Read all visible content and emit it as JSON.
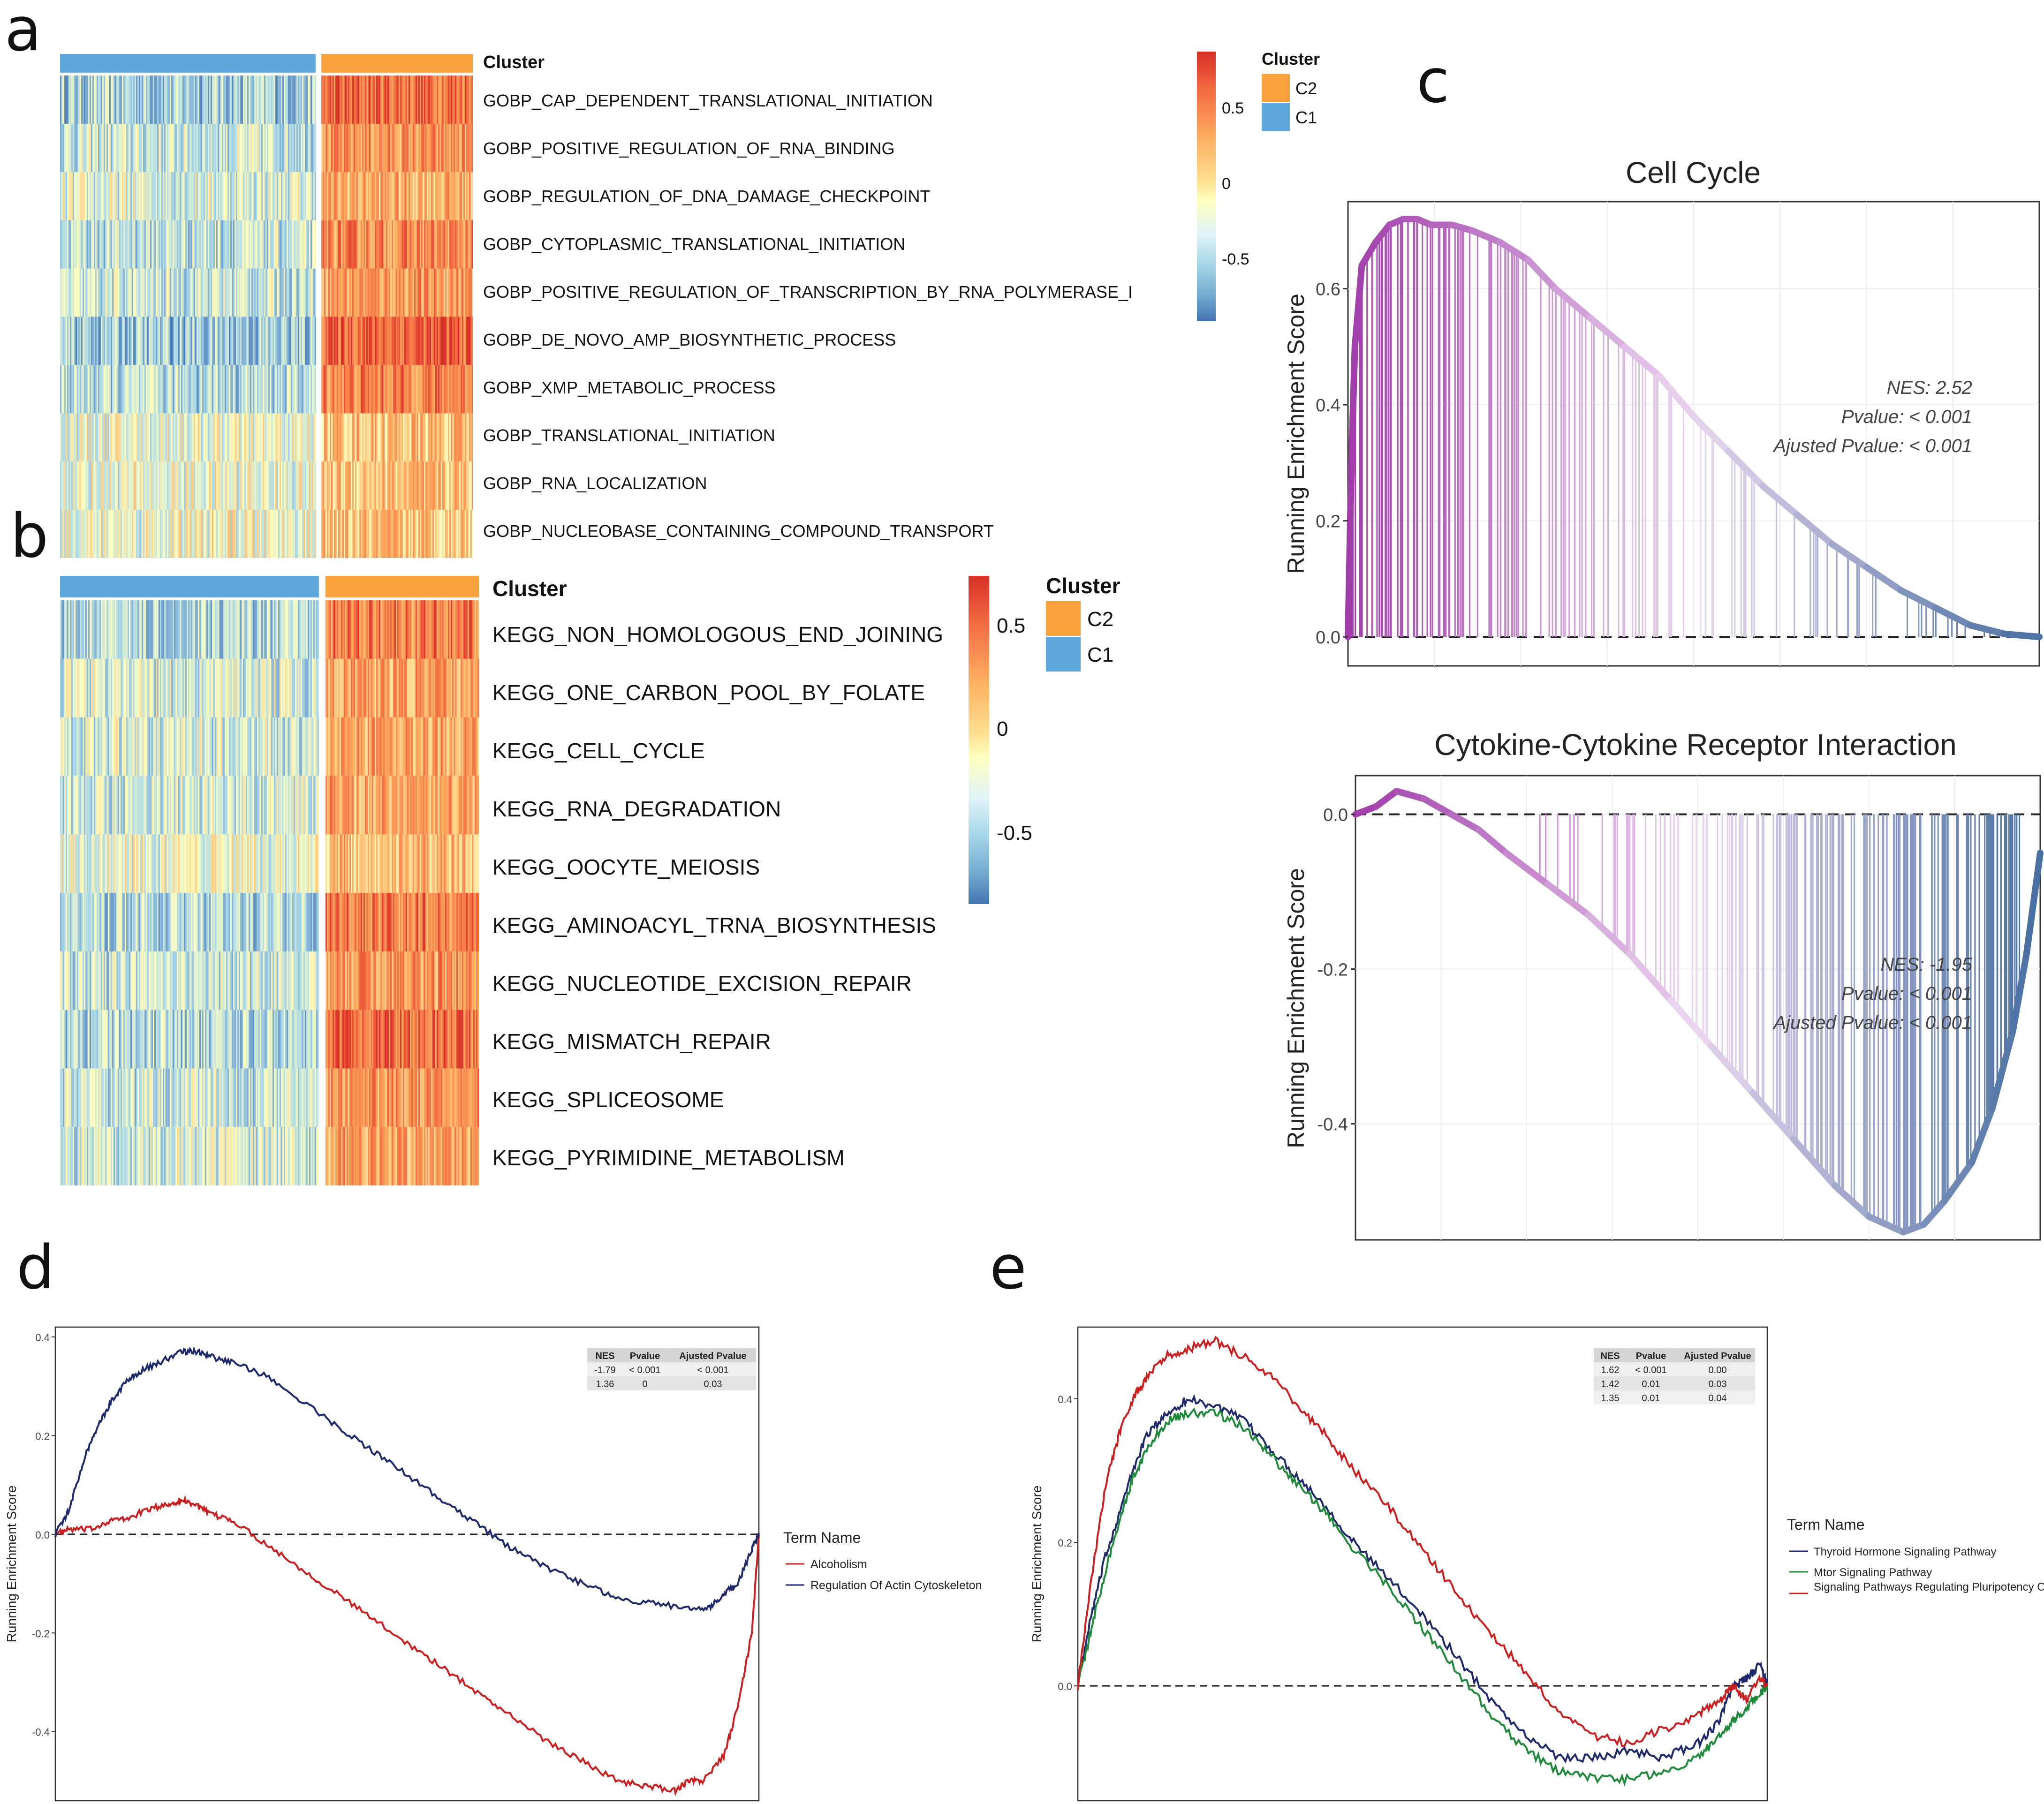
{
  "panels": {
    "a": "a",
    "b": "b",
    "c": "c",
    "d": "d",
    "e": "e"
  },
  "heatmap_a": {
    "cluster_header": "Cluster",
    "rows": [
      "GOBP_CAP_DEPENDENT_TRANSLATIONAL_INITIATION",
      "GOBP_POSITIVE_REGULATION_OF_RNA_BINDING",
      "GOBP_REGULATION_OF_DNA_DAMAGE_CHECKPOINT",
      "GOBP_CYTOPLASMIC_TRANSLATIONAL_INITIATION",
      "GOBP_POSITIVE_REGULATION_OF_TRANSCRIPTION_BY_RNA_POLYMERASE_I",
      "GOBP_DE_NOVO_AMP_BIOSYNTHETIC_PROCESS",
      "GOBP_XMP_METABOLIC_PROCESS",
      "GOBP_TRANSLATIONAL_INITIATION",
      "GOBP_RNA_LOCALIZATION",
      "GOBP_NUCLEOBASE_CONTAINING_COMPOUND_TRANSPORT"
    ],
    "row_intensity": [
      0.55,
      0.35,
      0.25,
      0.4,
      0.35,
      0.6,
      0.45,
      0.15,
      0.15,
      0.12
    ],
    "scale_ticks": [
      "0.5",
      "0",
      "-0.5"
    ],
    "legend_title": "Cluster",
    "legend": [
      {
        "label": "C2",
        "color": "#f8a13d"
      },
      {
        "label": "C1",
        "color": "#5fa8dd"
      }
    ]
  },
  "heatmap_b": {
    "cluster_header": "Cluster",
    "rows": [
      "KEGG_NON_HOMOLOGOUS_END_JOINING",
      "KEGG_ONE_CARBON_POOL_BY_FOLATE",
      "KEGG_CELL_CYCLE",
      "KEGG_RNA_DEGRADATION",
      "KEGG_OOCYTE_MEIOSIS",
      "KEGG_AMINOACYL_TRNA_BIOSYNTHESIS",
      "KEGG_NUCLEOTIDE_EXCISION_REPAIR",
      "KEGG_MISMATCH_REPAIR",
      "KEGG_SPLICEOSOME",
      "KEGG_PYRIMIDINE_METABOLISM"
    ],
    "row_intensity": [
      0.45,
      0.3,
      0.3,
      0.3,
      0.2,
      0.45,
      0.35,
      0.5,
      0.35,
      0.3
    ],
    "scale_ticks": [
      "0.5",
      "0",
      "-0.5"
    ],
    "legend_title": "Cluster",
    "legend": [
      {
        "label": "C2",
        "color": "#f8a13d"
      },
      {
        "label": "C1",
        "color": "#5fa8dd"
      }
    ]
  },
  "chart_data": [
    {
      "type": "line",
      "title": "Cell Cycle",
      "ylabel": "Running Enrichment Score",
      "ylim": [
        -0.05,
        0.75
      ],
      "yticks": [
        "0.0",
        "0.2",
        "0.4",
        "0.6"
      ],
      "nes_text": "NES: 2.52",
      "pvalue_text": "Pvalue: < 0.001",
      "adj_pvalue_text": "Ajusted Pvalue: < 0.001",
      "x": [
        0,
        0.005,
        0.01,
        0.02,
        0.04,
        0.06,
        0.08,
        0.1,
        0.12,
        0.15,
        0.18,
        0.22,
        0.26,
        0.3,
        0.35,
        0.4,
        0.45,
        0.5,
        0.55,
        0.6,
        0.65,
        0.7,
        0.75,
        0.8,
        0.85,
        0.9,
        0.95,
        1.0
      ],
      "values": [
        0.0,
        0.3,
        0.5,
        0.64,
        0.68,
        0.71,
        0.72,
        0.72,
        0.71,
        0.71,
        0.7,
        0.68,
        0.65,
        0.6,
        0.55,
        0.5,
        0.45,
        0.38,
        0.32,
        0.26,
        0.21,
        0.16,
        0.12,
        0.08,
        0.05,
        0.02,
        0.005,
        0.0
      ]
    },
    {
      "type": "line",
      "title": "Cytokine-Cytokine Receptor Interaction",
      "ylabel": "Running Enrichment Score",
      "ylim": [
        -0.55,
        0.05
      ],
      "yticks": [
        "0.0",
        "-0.2",
        "-0.4"
      ],
      "nes_text": "NES: -1.95",
      "pvalue_text": "Pvalue: < 0.001",
      "adj_pvalue_text": "Ajusted Pvalue: < 0.001",
      "x": [
        0,
        0.03,
        0.06,
        0.1,
        0.14,
        0.18,
        0.22,
        0.28,
        0.34,
        0.4,
        0.46,
        0.52,
        0.58,
        0.64,
        0.7,
        0.75,
        0.8,
        0.83,
        0.86,
        0.9,
        0.93,
        0.96,
        0.98,
        1.0
      ],
      "values": [
        0.0,
        0.01,
        0.03,
        0.02,
        0.0,
        -0.02,
        -0.05,
        -0.09,
        -0.13,
        -0.18,
        -0.24,
        -0.3,
        -0.36,
        -0.42,
        -0.48,
        -0.52,
        -0.54,
        -0.53,
        -0.5,
        -0.45,
        -0.38,
        -0.28,
        -0.18,
        -0.05
      ]
    },
    {
      "type": "line",
      "ylabel": "Running Enrichment Score",
      "ylim": [
        -0.54,
        0.42
      ],
      "yticks": [
        "0.4",
        "0.2",
        "0.0",
        "-0.2",
        "-0.4"
      ],
      "legend_title": "Term Name",
      "table_header": [
        "NES",
        "Pvalue",
        "Ajusted Pvalue"
      ],
      "table_rows": [
        [
          "-1.79",
          "< 0.001",
          "< 0.001"
        ],
        [
          "1.36",
          "0",
          "0.03"
        ]
      ],
      "series": [
        {
          "name": "Alcoholism",
          "color": "#cc2020",
          "x": [
            0,
            0.02,
            0.05,
            0.08,
            0.1,
            0.13,
            0.16,
            0.18,
            0.2,
            0.22,
            0.25,
            0.3,
            0.35,
            0.4,
            0.45,
            0.5,
            0.55,
            0.6,
            0.65,
            0.7,
            0.75,
            0.8,
            0.84,
            0.88,
            0.9,
            0.92,
            0.95,
            0.97,
            0.99,
            1.0
          ],
          "values": [
            0.0,
            0.01,
            0.01,
            0.03,
            0.03,
            0.05,
            0.06,
            0.07,
            0.06,
            0.04,
            0.03,
            -0.02,
            -0.07,
            -0.12,
            -0.17,
            -0.22,
            -0.27,
            -0.32,
            -0.37,
            -0.42,
            -0.46,
            -0.5,
            -0.51,
            -0.52,
            -0.5,
            -0.5,
            -0.45,
            -0.35,
            -0.2,
            0.0
          ]
        },
        {
          "name": "Regulation Of Actin Cytoskeleton",
          "color": "#1e2a6b",
          "x": [
            0,
            0.02,
            0.04,
            0.06,
            0.08,
            0.1,
            0.12,
            0.15,
            0.18,
            0.2,
            0.22,
            0.25,
            0.3,
            0.35,
            0.4,
            0.45,
            0.5,
            0.55,
            0.6,
            0.65,
            0.7,
            0.75,
            0.8,
            0.85,
            0.9,
            0.93,
            0.95,
            0.97,
            0.99,
            1.0
          ],
          "values": [
            0.0,
            0.05,
            0.15,
            0.22,
            0.27,
            0.31,
            0.33,
            0.35,
            0.37,
            0.37,
            0.36,
            0.35,
            0.32,
            0.27,
            0.22,
            0.17,
            0.12,
            0.07,
            0.02,
            -0.03,
            -0.07,
            -0.1,
            -0.13,
            -0.14,
            -0.15,
            -0.15,
            -0.12,
            -0.1,
            -0.03,
            0.0
          ]
        }
      ]
    },
    {
      "type": "line",
      "ylabel": "Running Enrichment Score",
      "ylim": [
        -0.16,
        0.5
      ],
      "yticks": [
        "0.4",
        "0.2",
        "0.0"
      ],
      "legend_title": "Term Name",
      "table_header": [
        "NES",
        "Pvalue",
        "Ajusted Pvalue"
      ],
      "table_rows": [
        [
          "1.62",
          "< 0.001",
          "0.00"
        ],
        [
          "1.42",
          "0.01",
          "0.03"
        ],
        [
          "1.35",
          "0.01",
          "0.04"
        ]
      ],
      "series": [
        {
          "name": "Thyroid Hormone Signaling Pathway",
          "color": "#1e2a6b",
          "x": [
            0,
            0.02,
            0.04,
            0.06,
            0.08,
            0.1,
            0.13,
            0.16,
            0.2,
            0.24,
            0.28,
            0.32,
            0.36,
            0.4,
            0.45,
            0.5,
            0.55,
            0.6,
            0.65,
            0.7,
            0.75,
            0.8,
            0.85,
            0.9,
            0.93,
            0.95,
            0.97,
            0.99,
            1.0
          ],
          "values": [
            0.0,
            0.1,
            0.18,
            0.24,
            0.3,
            0.35,
            0.38,
            0.4,
            0.39,
            0.37,
            0.33,
            0.29,
            0.25,
            0.2,
            0.15,
            0.1,
            0.04,
            -0.02,
            -0.07,
            -0.1,
            -0.1,
            -0.09,
            -0.1,
            -0.08,
            -0.05,
            0.0,
            0.01,
            0.03,
            0.0
          ]
        },
        {
          "name": "Mtor Signaling Pathway",
          "color": "#1f8a3a",
          "x": [
            0,
            0.02,
            0.04,
            0.06,
            0.08,
            0.1,
            0.13,
            0.16,
            0.2,
            0.24,
            0.28,
            0.32,
            0.36,
            0.4,
            0.45,
            0.5,
            0.55,
            0.6,
            0.65,
            0.7,
            0.75,
            0.8,
            0.85,
            0.9,
            0.93,
            0.95,
            0.97,
            0.99,
            1.0
          ],
          "values": [
            0.0,
            0.08,
            0.16,
            0.23,
            0.29,
            0.33,
            0.37,
            0.38,
            0.38,
            0.36,
            0.32,
            0.28,
            0.24,
            0.19,
            0.14,
            0.08,
            0.02,
            -0.04,
            -0.09,
            -0.12,
            -0.13,
            -0.13,
            -0.12,
            -0.1,
            -0.07,
            -0.05,
            -0.03,
            -0.01,
            0.0
          ]
        },
        {
          "name": "Signaling Pathways Regulating Pluripotency Of Stem Cells",
          "color": "#cc2020",
          "x": [
            0,
            0.02,
            0.04,
            0.06,
            0.08,
            0.1,
            0.13,
            0.16,
            0.2,
            0.24,
            0.28,
            0.32,
            0.36,
            0.4,
            0.45,
            0.5,
            0.55,
            0.6,
            0.65,
            0.7,
            0.75,
            0.8,
            0.85,
            0.9,
            0.93,
            0.95,
            0.97,
            0.99,
            1.0
          ],
          "values": [
            0.0,
            0.15,
            0.28,
            0.35,
            0.4,
            0.43,
            0.46,
            0.47,
            0.48,
            0.46,
            0.43,
            0.39,
            0.35,
            0.3,
            0.25,
            0.19,
            0.13,
            0.07,
            0.02,
            -0.04,
            -0.07,
            -0.08,
            -0.06,
            -0.04,
            -0.02,
            0.0,
            -0.02,
            0.01,
            0.0
          ]
        }
      ]
    }
  ]
}
